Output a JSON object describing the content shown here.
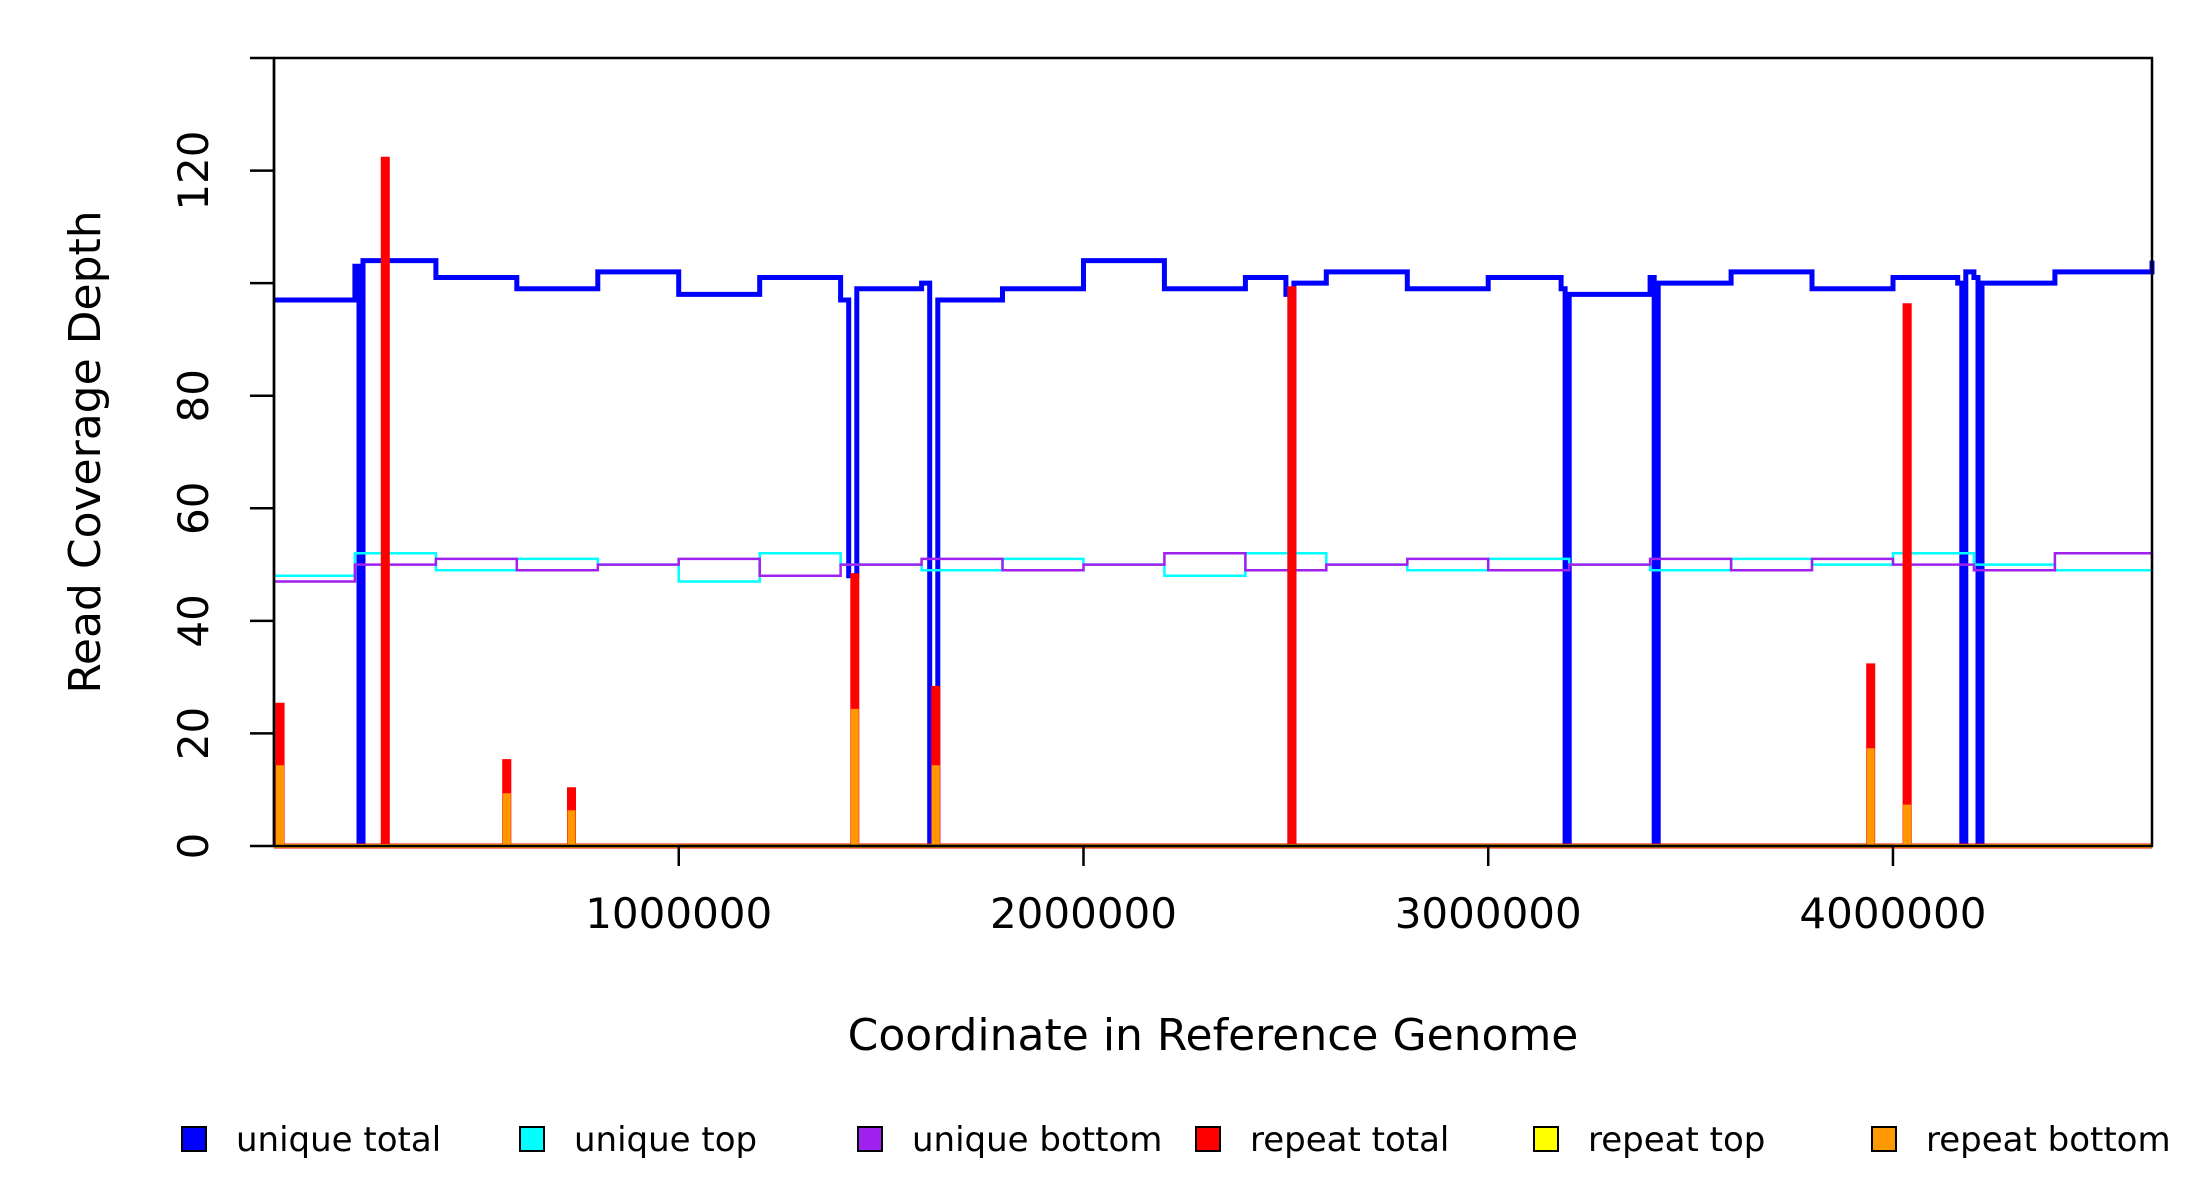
{
  "chart_data": {
    "type": "line",
    "title": "",
    "xlabel": "Coordinate in Reference Genome",
    "ylabel": "Read Coverage Depth",
    "xlim": [
      0,
      4640000
    ],
    "ylim": [
      0,
      140
    ],
    "x_ticks": [
      1000000,
      2000000,
      3000000,
      4000000
    ],
    "x_tick_labels": [
      "1000000",
      "2000000",
      "3000000",
      "4000000"
    ],
    "y_ticks": [
      0,
      20,
      40,
      60,
      80,
      100,
      120,
      140
    ],
    "y_tick_labels": [
      "0",
      "20",
      "40",
      "60",
      "80",
      "",
      "120",
      ""
    ],
    "grid": false,
    "legend_position": "bottom",
    "series": [
      {
        "name": "unique total",
        "color": "#0000ff",
        "x": [
          0,
          200000,
          210000,
          220000,
          400000,
          600000,
          800000,
          1000000,
          1200000,
          1400000,
          1420000,
          1440000,
          1600000,
          1620000,
          1640000,
          1800000,
          2000000,
          2200000,
          2400000,
          2500000,
          2510000,
          2520000,
          2600000,
          2800000,
          3000000,
          3180000,
          3190000,
          3200000,
          3400000,
          3410000,
          3420000,
          3600000,
          3800000,
          4000000,
          4160000,
          4170000,
          4180000,
          4200000,
          4210000,
          4220000,
          4400000,
          4640000
        ],
        "y": [
          97,
          103,
          0,
          104,
          101,
          99,
          102,
          98,
          101,
          97,
          48,
          99,
          100,
          0,
          97,
          99,
          104,
          99,
          101,
          98,
          0,
          100,
          102,
          99,
          101,
          99,
          0,
          98,
          101,
          0,
          100,
          102,
          99,
          101,
          100,
          0,
          102,
          101,
          0,
          100,
          102,
          104
        ]
      },
      {
        "name": "unique top",
        "color": "#00ffff",
        "x": [
          0,
          200000,
          400000,
          600000,
          800000,
          1000000,
          1200000,
          1400000,
          1600000,
          1800000,
          2000000,
          2200000,
          2400000,
          2600000,
          2800000,
          3000000,
          3200000,
          3400000,
          3600000,
          3800000,
          4000000,
          4200000,
          4400000,
          4640000
        ],
        "y": [
          48,
          52,
          49,
          51,
          50,
          47,
          52,
          50,
          49,
          51,
          50,
          48,
          52,
          50,
          49,
          51,
          50,
          49,
          51,
          50,
          52,
          50,
          49,
          50
        ]
      },
      {
        "name": "unique bottom",
        "color": "#a020f0",
        "x": [
          0,
          200000,
          400000,
          600000,
          800000,
          1000000,
          1200000,
          1400000,
          1600000,
          1800000,
          2000000,
          2200000,
          2400000,
          2600000,
          2800000,
          3000000,
          3200000,
          3400000,
          3600000,
          3800000,
          4000000,
          4200000,
          4400000,
          4640000
        ],
        "y": [
          47,
          50,
          51,
          49,
          50,
          51,
          48,
          50,
          51,
          49,
          50,
          52,
          49,
          50,
          51,
          49,
          50,
          51,
          49,
          51,
          50,
          49,
          52,
          51
        ]
      },
      {
        "name": "repeat total",
        "color": "#ff0000",
        "x": [
          0,
          10000,
          20000,
          260000,
          270000,
          280000,
          560000,
          570000,
          580000,
          720000,
          730000,
          740000,
          1420000,
          1430000,
          1440000,
          1620000,
          1630000,
          1640000,
          2500000,
          2510000,
          2520000,
          3930000,
          3940000,
          3950000,
          4020000,
          4030000,
          4040000,
          4640000
        ],
        "y": [
          0,
          25,
          0,
          0,
          122,
          0,
          0,
          15,
          0,
          0,
          10,
          0,
          0,
          48,
          0,
          0,
          28,
          0,
          0,
          99,
          0,
          0,
          32,
          0,
          0,
          96,
          0,
          0
        ]
      },
      {
        "name": "repeat top",
        "color": "#ffff00",
        "x": [
          0,
          4640000
        ],
        "y": [
          0,
          0
        ]
      },
      {
        "name": "repeat bottom",
        "color": "#ff9900",
        "x": [
          0,
          10000,
          20000,
          560000,
          570000,
          580000,
          720000,
          730000,
          740000,
          1420000,
          1430000,
          1440000,
          1620000,
          1630000,
          1640000,
          3930000,
          3940000,
          3950000,
          4020000,
          4030000,
          4040000,
          4640000
        ],
        "y": [
          0,
          14,
          0,
          0,
          9,
          0,
          0,
          6,
          0,
          0,
          24,
          0,
          0,
          14,
          0,
          0,
          17,
          0,
          0,
          7,
          0,
          0
        ]
      }
    ]
  }
}
